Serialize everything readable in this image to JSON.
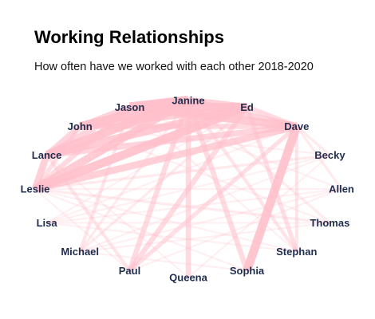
{
  "chart_data": {
    "type": "network",
    "title": "Working Relationships",
    "subtitle": "How often have we worked with each other 2018-2020",
    "edge_color": "#ffc0cb",
    "label_color": "#1f2d4d",
    "nodes": [
      "Janine",
      "Ed",
      "Dave",
      "Becky",
      "Allen",
      "Thomas",
      "Stephan",
      "Sophia",
      "Queena",
      "Paul",
      "Michael",
      "Lisa",
      "Leslie",
      "Lance",
      "John",
      "Jason"
    ],
    "edges": [
      {
        "source": "Janine",
        "target": "Jason",
        "weight": 10
      },
      {
        "source": "Janine",
        "target": "John",
        "weight": 9
      },
      {
        "source": "Janine",
        "target": "Lance",
        "weight": 9
      },
      {
        "source": "Janine",
        "target": "Leslie",
        "weight": 8
      },
      {
        "source": "Janine",
        "target": "Ed",
        "weight": 7
      },
      {
        "source": "Janine",
        "target": "Dave",
        "weight": 6
      },
      {
        "source": "Janine",
        "target": "Queena",
        "weight": 5
      },
      {
        "source": "Janine",
        "target": "Paul",
        "weight": 5
      },
      {
        "source": "Janine",
        "target": "Sophia",
        "weight": 5
      },
      {
        "source": "Janine",
        "target": "Stephan",
        "weight": 3
      },
      {
        "source": "Janine",
        "target": "Thomas",
        "weight": 2
      },
      {
        "source": "Janine",
        "target": "Michael",
        "weight": 2
      },
      {
        "source": "Jason",
        "target": "Ed",
        "weight": 9
      },
      {
        "source": "Jason",
        "target": "Dave",
        "weight": 8
      },
      {
        "source": "Jason",
        "target": "Lance",
        "weight": 6
      },
      {
        "source": "Jason",
        "target": "Leslie",
        "weight": 5
      },
      {
        "source": "Jason",
        "target": "John",
        "weight": 6
      },
      {
        "source": "Jason",
        "target": "Michael",
        "weight": 3
      },
      {
        "source": "John",
        "target": "Ed",
        "weight": 7
      },
      {
        "source": "John",
        "target": "Dave",
        "weight": 5
      },
      {
        "source": "John",
        "target": "Lance",
        "weight": 6
      },
      {
        "source": "John",
        "target": "Leslie",
        "weight": 4
      },
      {
        "source": "Lance",
        "target": "Ed",
        "weight": 8
      },
      {
        "source": "Lance",
        "target": "Dave",
        "weight": 6
      },
      {
        "source": "Lance",
        "target": "Leslie",
        "weight": 7
      },
      {
        "source": "Lance",
        "target": "Paul",
        "weight": 3
      },
      {
        "source": "Leslie",
        "target": "Ed",
        "weight": 9
      },
      {
        "source": "Leslie",
        "target": "Dave",
        "weight": 7
      },
      {
        "source": "Leslie",
        "target": "Becky",
        "weight": 2
      },
      {
        "source": "Leslie",
        "target": "Thomas",
        "weight": 2
      },
      {
        "source": "Ed",
        "target": "Dave",
        "weight": 5
      },
      {
        "source": "Ed",
        "target": "Paul",
        "weight": 5
      },
      {
        "source": "Ed",
        "target": "Stephan",
        "weight": 4
      },
      {
        "source": "Ed",
        "target": "Michael",
        "weight": 2
      },
      {
        "source": "Dave",
        "target": "Sophia",
        "weight": 9
      },
      {
        "source": "Dave",
        "target": "Paul",
        "weight": 4
      },
      {
        "source": "Dave",
        "target": "Stephan",
        "weight": 3
      },
      {
        "source": "Dave",
        "target": "Becky",
        "weight": 2
      },
      {
        "source": "Dave",
        "target": "Allen",
        "weight": 2
      },
      {
        "source": "Becky",
        "target": "Lisa",
        "weight": 1
      },
      {
        "source": "Becky",
        "target": "Michael",
        "weight": 1
      },
      {
        "source": "Allen",
        "target": "Lisa",
        "weight": 1
      },
      {
        "source": "Allen",
        "target": "Leslie",
        "weight": 1
      },
      {
        "source": "Thomas",
        "target": "Lisa",
        "weight": 1
      },
      {
        "source": "Thomas",
        "target": "Michael",
        "weight": 1
      },
      {
        "source": "Stephan",
        "target": "Lisa",
        "weight": 1
      },
      {
        "source": "Stephan",
        "target": "Leslie",
        "weight": 1
      },
      {
        "source": "Sophia",
        "target": "Leslie",
        "weight": 1
      },
      {
        "source": "Sophia",
        "target": "Michael",
        "weight": 1
      },
      {
        "source": "Queena",
        "target": "Lance",
        "weight": 1
      },
      {
        "source": "Queena",
        "target": "Becky",
        "weight": 1
      },
      {
        "source": "Paul",
        "target": "Allen",
        "weight": 1
      },
      {
        "source": "Paul",
        "target": "Leslie",
        "weight": 1
      },
      {
        "source": "Michael",
        "target": "Allen",
        "weight": 1
      },
      {
        "source": "Lisa",
        "target": "Dave",
        "weight": 1
      },
      {
        "source": "Lisa",
        "target": "Ed",
        "weight": 1
      },
      {
        "source": "John",
        "target": "Becky",
        "weight": 1
      },
      {
        "source": "John",
        "target": "Thomas",
        "weight": 1
      },
      {
        "source": "Jason",
        "target": "Allen",
        "weight": 1
      },
      {
        "source": "Jason",
        "target": "Stephan",
        "weight": 1
      }
    ]
  }
}
